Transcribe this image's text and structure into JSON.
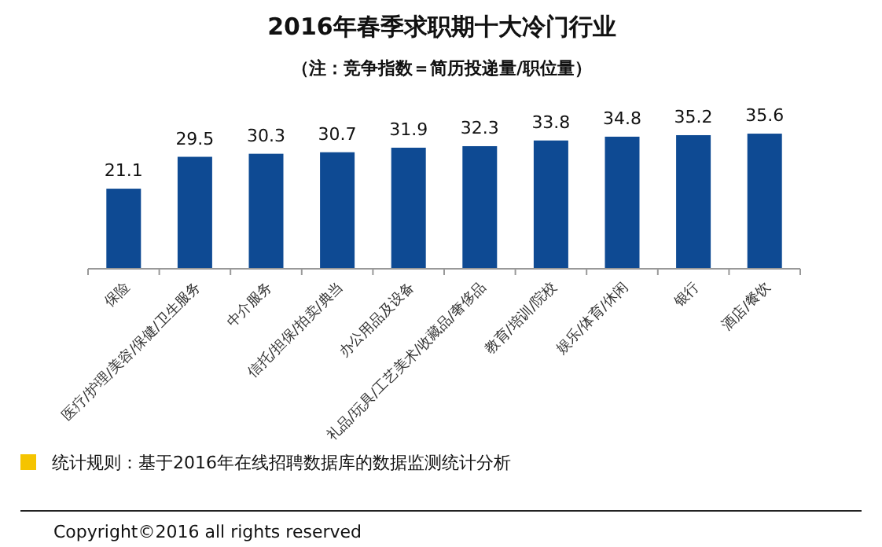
{
  "chart_data": {
    "type": "bar",
    "title": "2016年春季求职期十大冷门行业",
    "subtitle": "（注：竞争指数＝简历投递量/职位量）",
    "categories": [
      "保险",
      "医疗/护理/美容/保健/卫生服务",
      "中介服务",
      "信托/担保/拍卖/典当",
      "办公用品及设备",
      "礼品/玩具/工艺美术/收藏品/奢侈品",
      "教育/培训/院校",
      "娱乐/体育/休闲",
      "银行",
      "酒店/餐饮"
    ],
    "values": [
      21.1,
      29.5,
      30.3,
      30.7,
      31.9,
      32.3,
      33.8,
      34.8,
      35.2,
      35.6
    ],
    "color": "#0e4a93",
    "data_labels": true,
    "annotations": [
      "统计规则：基于2016年在线招聘数据库的数据监测统计分析",
      "Copyright©2016 all rights reserved"
    ]
  }
}
